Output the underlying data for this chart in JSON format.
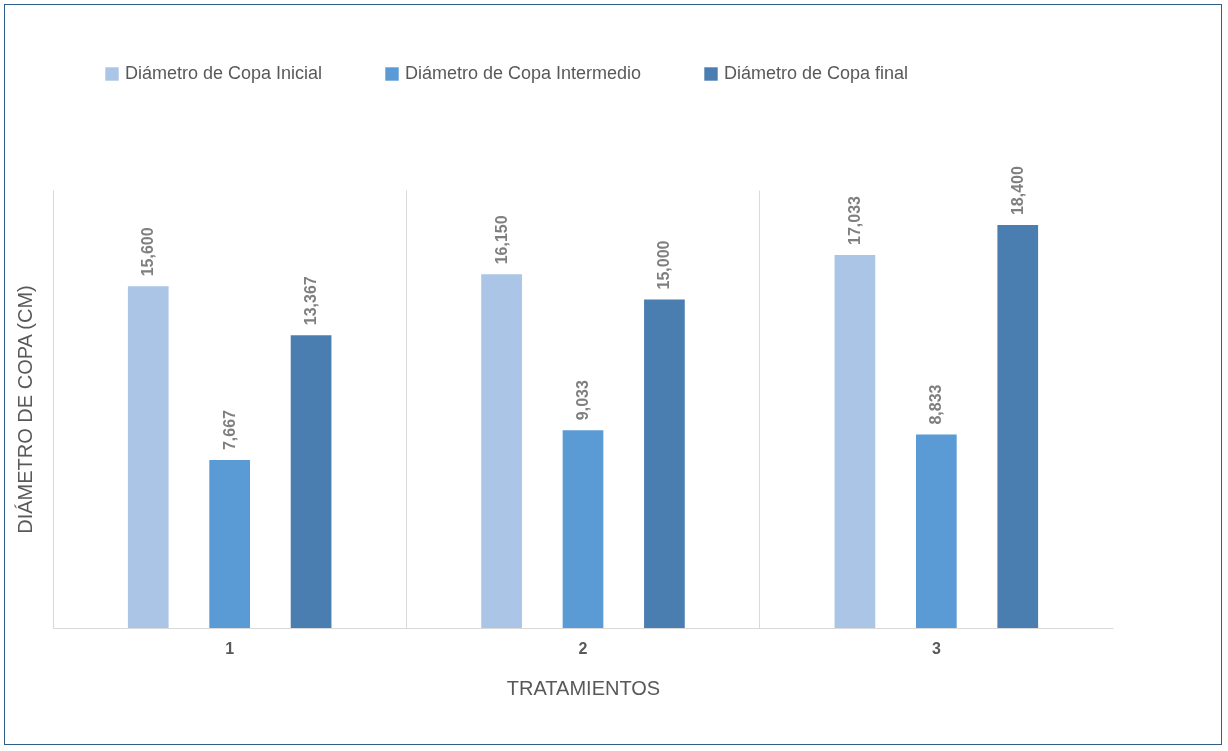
{
  "chart_data": {
    "type": "bar",
    "xlabel": "TRATAMIENTOS",
    "ylabel": "DIÁMETRO DE COPA (CM)",
    "categories": [
      "1",
      "2",
      "3"
    ],
    "series": [
      {
        "name": "Diámetro de Copa Inicial",
        "color": "#abc5e6",
        "values": [
          15600,
          16150,
          17033
        ],
        "value_labels": [
          "15,600",
          "16,150",
          "17,033"
        ]
      },
      {
        "name": "Diámetro de Copa Intermedio",
        "color": "#5b9bd5",
        "values": [
          7667,
          9033,
          8833
        ],
        "value_labels": [
          "7,667",
          "9,033",
          "8,833"
        ]
      },
      {
        "name": "Diámetro de Copa final",
        "color": "#4a7eb0",
        "values": [
          13367,
          15000,
          18400
        ],
        "value_labels": [
          "13,367",
          "15,000",
          "18,400"
        ]
      }
    ],
    "tick_labels": "x",
    "grid": "x",
    "legend": "top"
  }
}
